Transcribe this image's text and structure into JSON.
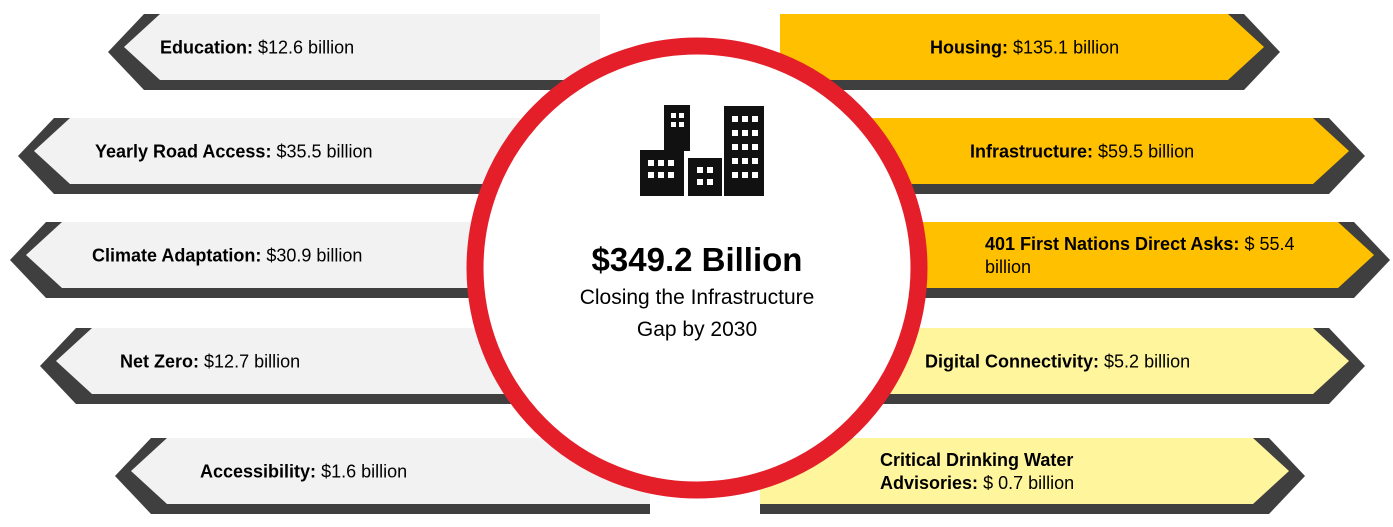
{
  "center": {
    "title": "$349.2 Billion",
    "subtitle": "Closing the Infrastructure Gap by 2030"
  },
  "left": [
    {
      "label": "Education:",
      "value": "$12.6 billion"
    },
    {
      "label": "Yearly Road Access:",
      "value": "$35.5 billion"
    },
    {
      "label": "Climate Adaptation:",
      "value": "$30.9 billion"
    },
    {
      "label": "Net Zero:",
      "value": "$12.7 billion"
    },
    {
      "label": "Accessibility:",
      "value": "$1.6 billion"
    }
  ],
  "right": [
    {
      "label": "Housing:",
      "value": "$135.1 billion"
    },
    {
      "label": "Infrastructure:",
      "value": "$59.5 billion"
    },
    {
      "label": "401 First Nations Direct Asks:",
      "value": "$ 55.4 billion"
    },
    {
      "label": "Digital Connectivity:",
      "value": "$5.2 billion"
    },
    {
      "label": "Critical Drinking Water Advisories:",
      "value": "$ 0.7 billion"
    }
  ]
}
